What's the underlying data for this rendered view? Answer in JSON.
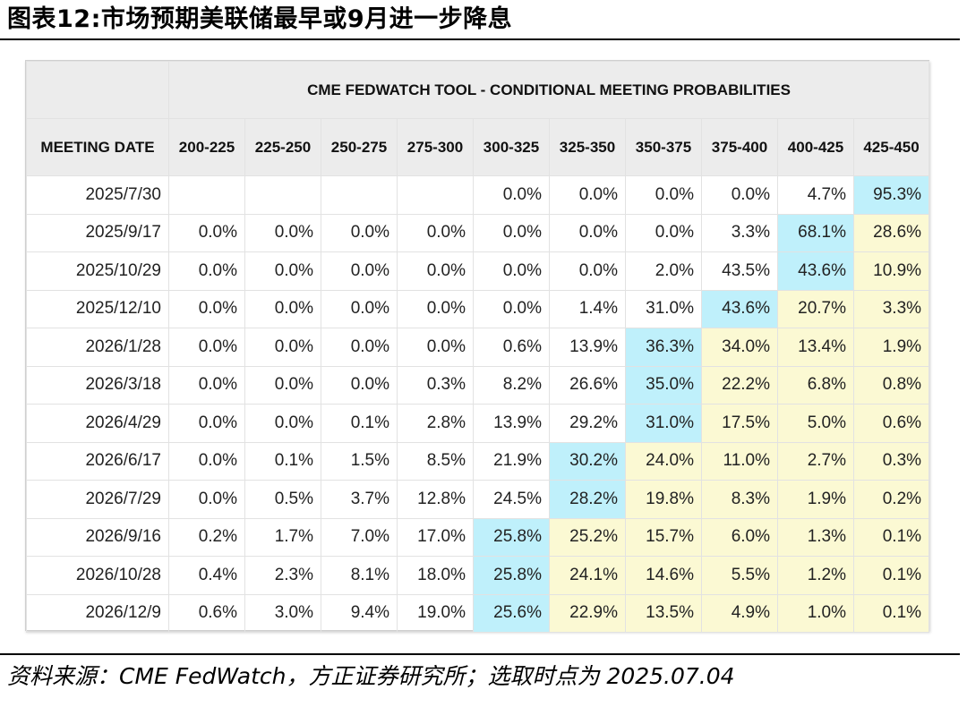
{
  "title": "图表12:市场预期美联储最早或9月进一步降息",
  "table": {
    "super_header": "CME FEDWATCH TOOL - CONDITIONAL MEETING PROBABILITIES",
    "columns": [
      "MEETING DATE",
      "200-225",
      "225-250",
      "250-275",
      "275-300",
      "300-325",
      "325-350",
      "350-375",
      "375-400",
      "400-425",
      "425-450"
    ],
    "rows": [
      {
        "date": "2025/7/30",
        "values": [
          "",
          "",
          "",
          "",
          "0.0%",
          "0.0%",
          "0.0%",
          "0.0%",
          "4.7%",
          "95.3%"
        ],
        "highlight": [
          "",
          "",
          "",
          "",
          "",
          "",
          "",
          "",
          "",
          "cyan"
        ]
      },
      {
        "date": "2025/9/17",
        "values": [
          "0.0%",
          "0.0%",
          "0.0%",
          "0.0%",
          "0.0%",
          "0.0%",
          "0.0%",
          "3.3%",
          "68.1%",
          "28.6%"
        ],
        "highlight": [
          "",
          "",
          "",
          "",
          "",
          "",
          "",
          "",
          "cyan",
          "yellow"
        ]
      },
      {
        "date": "2025/10/29",
        "values": [
          "0.0%",
          "0.0%",
          "0.0%",
          "0.0%",
          "0.0%",
          "0.0%",
          "2.0%",
          "43.5%",
          "43.6%",
          "10.9%"
        ],
        "highlight": [
          "",
          "",
          "",
          "",
          "",
          "",
          "",
          "",
          "cyan",
          "yellow"
        ]
      },
      {
        "date": "2025/12/10",
        "values": [
          "0.0%",
          "0.0%",
          "0.0%",
          "0.0%",
          "0.0%",
          "1.4%",
          "31.0%",
          "43.6%",
          "20.7%",
          "3.3%"
        ],
        "highlight": [
          "",
          "",
          "",
          "",
          "",
          "",
          "",
          "cyan",
          "yellow",
          "yellow"
        ]
      },
      {
        "date": "2026/1/28",
        "values": [
          "0.0%",
          "0.0%",
          "0.0%",
          "0.0%",
          "0.6%",
          "13.9%",
          "36.3%",
          "34.0%",
          "13.4%",
          "1.9%"
        ],
        "highlight": [
          "",
          "",
          "",
          "",
          "",
          "",
          "cyan",
          "yellow",
          "yellow",
          "yellow"
        ]
      },
      {
        "date": "2026/3/18",
        "values": [
          "0.0%",
          "0.0%",
          "0.0%",
          "0.3%",
          "8.2%",
          "26.6%",
          "35.0%",
          "22.2%",
          "6.8%",
          "0.8%"
        ],
        "highlight": [
          "",
          "",
          "",
          "",
          "",
          "",
          "cyan",
          "yellow",
          "yellow",
          "yellow"
        ]
      },
      {
        "date": "2026/4/29",
        "values": [
          "0.0%",
          "0.0%",
          "0.1%",
          "2.8%",
          "13.9%",
          "29.2%",
          "31.0%",
          "17.5%",
          "5.0%",
          "0.6%"
        ],
        "highlight": [
          "",
          "",
          "",
          "",
          "",
          "",
          "cyan",
          "yellow",
          "yellow",
          "yellow"
        ]
      },
      {
        "date": "2026/6/17",
        "values": [
          "0.0%",
          "0.1%",
          "1.5%",
          "8.5%",
          "21.9%",
          "30.2%",
          "24.0%",
          "11.0%",
          "2.7%",
          "0.3%"
        ],
        "highlight": [
          "",
          "",
          "",
          "",
          "",
          "cyan",
          "yellow",
          "yellow",
          "yellow",
          "yellow"
        ]
      },
      {
        "date": "2026/7/29",
        "values": [
          "0.0%",
          "0.5%",
          "3.7%",
          "12.8%",
          "24.5%",
          "28.2%",
          "19.8%",
          "8.3%",
          "1.9%",
          "0.2%"
        ],
        "highlight": [
          "",
          "",
          "",
          "",
          "",
          "cyan",
          "yellow",
          "yellow",
          "yellow",
          "yellow"
        ]
      },
      {
        "date": "2026/9/16",
        "values": [
          "0.2%",
          "1.7%",
          "7.0%",
          "17.0%",
          "25.8%",
          "25.2%",
          "15.7%",
          "6.0%",
          "1.3%",
          "0.1%"
        ],
        "highlight": [
          "",
          "",
          "",
          "",
          "cyan",
          "yellow",
          "yellow",
          "yellow",
          "yellow",
          "yellow"
        ]
      },
      {
        "date": "2026/10/28",
        "values": [
          "0.4%",
          "2.3%",
          "8.1%",
          "18.0%",
          "25.8%",
          "24.1%",
          "14.6%",
          "5.5%",
          "1.2%",
          "0.1%"
        ],
        "highlight": [
          "",
          "",
          "",
          "",
          "cyan",
          "yellow",
          "yellow",
          "yellow",
          "yellow",
          "yellow"
        ]
      },
      {
        "date": "2026/12/9",
        "values": [
          "0.6%",
          "3.0%",
          "9.4%",
          "19.0%",
          "25.6%",
          "22.9%",
          "13.5%",
          "4.9%",
          "1.0%",
          "0.1%"
        ],
        "highlight": [
          "",
          "",
          "",
          "",
          "cyan",
          "yellow",
          "yellow",
          "yellow",
          "yellow",
          "yellow"
        ]
      }
    ]
  },
  "source": "资料来源：CME FedWatch，方正证券研究所；选取时点为 2025.07.04",
  "colors": {
    "cyan": "#bff0fb",
    "yellow": "#fbf9d3",
    "header_bg": "#ececec"
  }
}
